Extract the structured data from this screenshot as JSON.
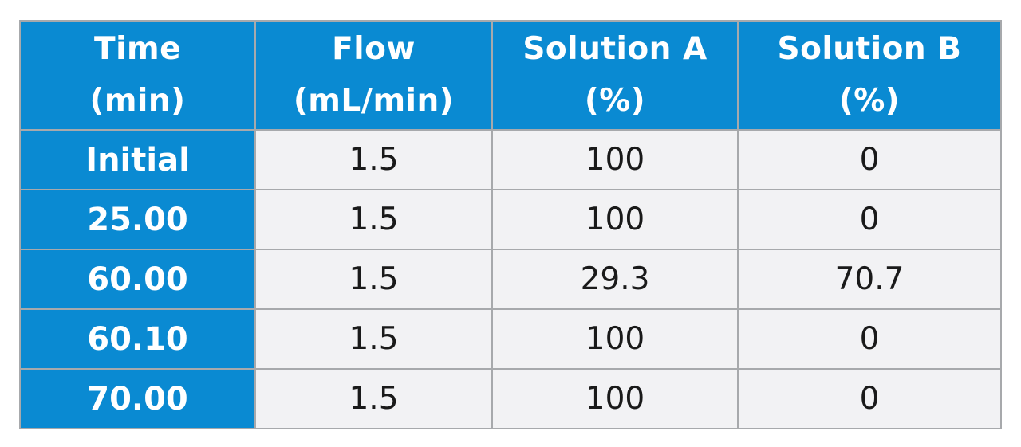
{
  "table": {
    "columns": [
      {
        "line1": "Time",
        "line2": "(min)"
      },
      {
        "line1": "Flow",
        "line2": "(mL/min)"
      },
      {
        "line1": "Solution A",
        "line2": "(%)"
      },
      {
        "line1": "Solution B",
        "line2": "(%)"
      }
    ],
    "rows": [
      {
        "time": "Initial",
        "flow": "1.5",
        "solution_a": "100",
        "solution_b": "0"
      },
      {
        "time": "25.00",
        "flow": "1.5",
        "solution_a": "100",
        "solution_b": "0"
      },
      {
        "time": "60.00",
        "flow": "1.5",
        "solution_a": "29.3",
        "solution_b": "70.7"
      },
      {
        "time": "60.10",
        "flow": "1.5",
        "solution_a": "100",
        "solution_b": "0"
      },
      {
        "time": "70.00",
        "flow": "1.5",
        "solution_a": "100",
        "solution_b": "0"
      }
    ]
  },
  "colors": {
    "header_bg": "#0a8ad2",
    "cell_bg": "#f2f2f4",
    "border": "#a7a9ac"
  }
}
